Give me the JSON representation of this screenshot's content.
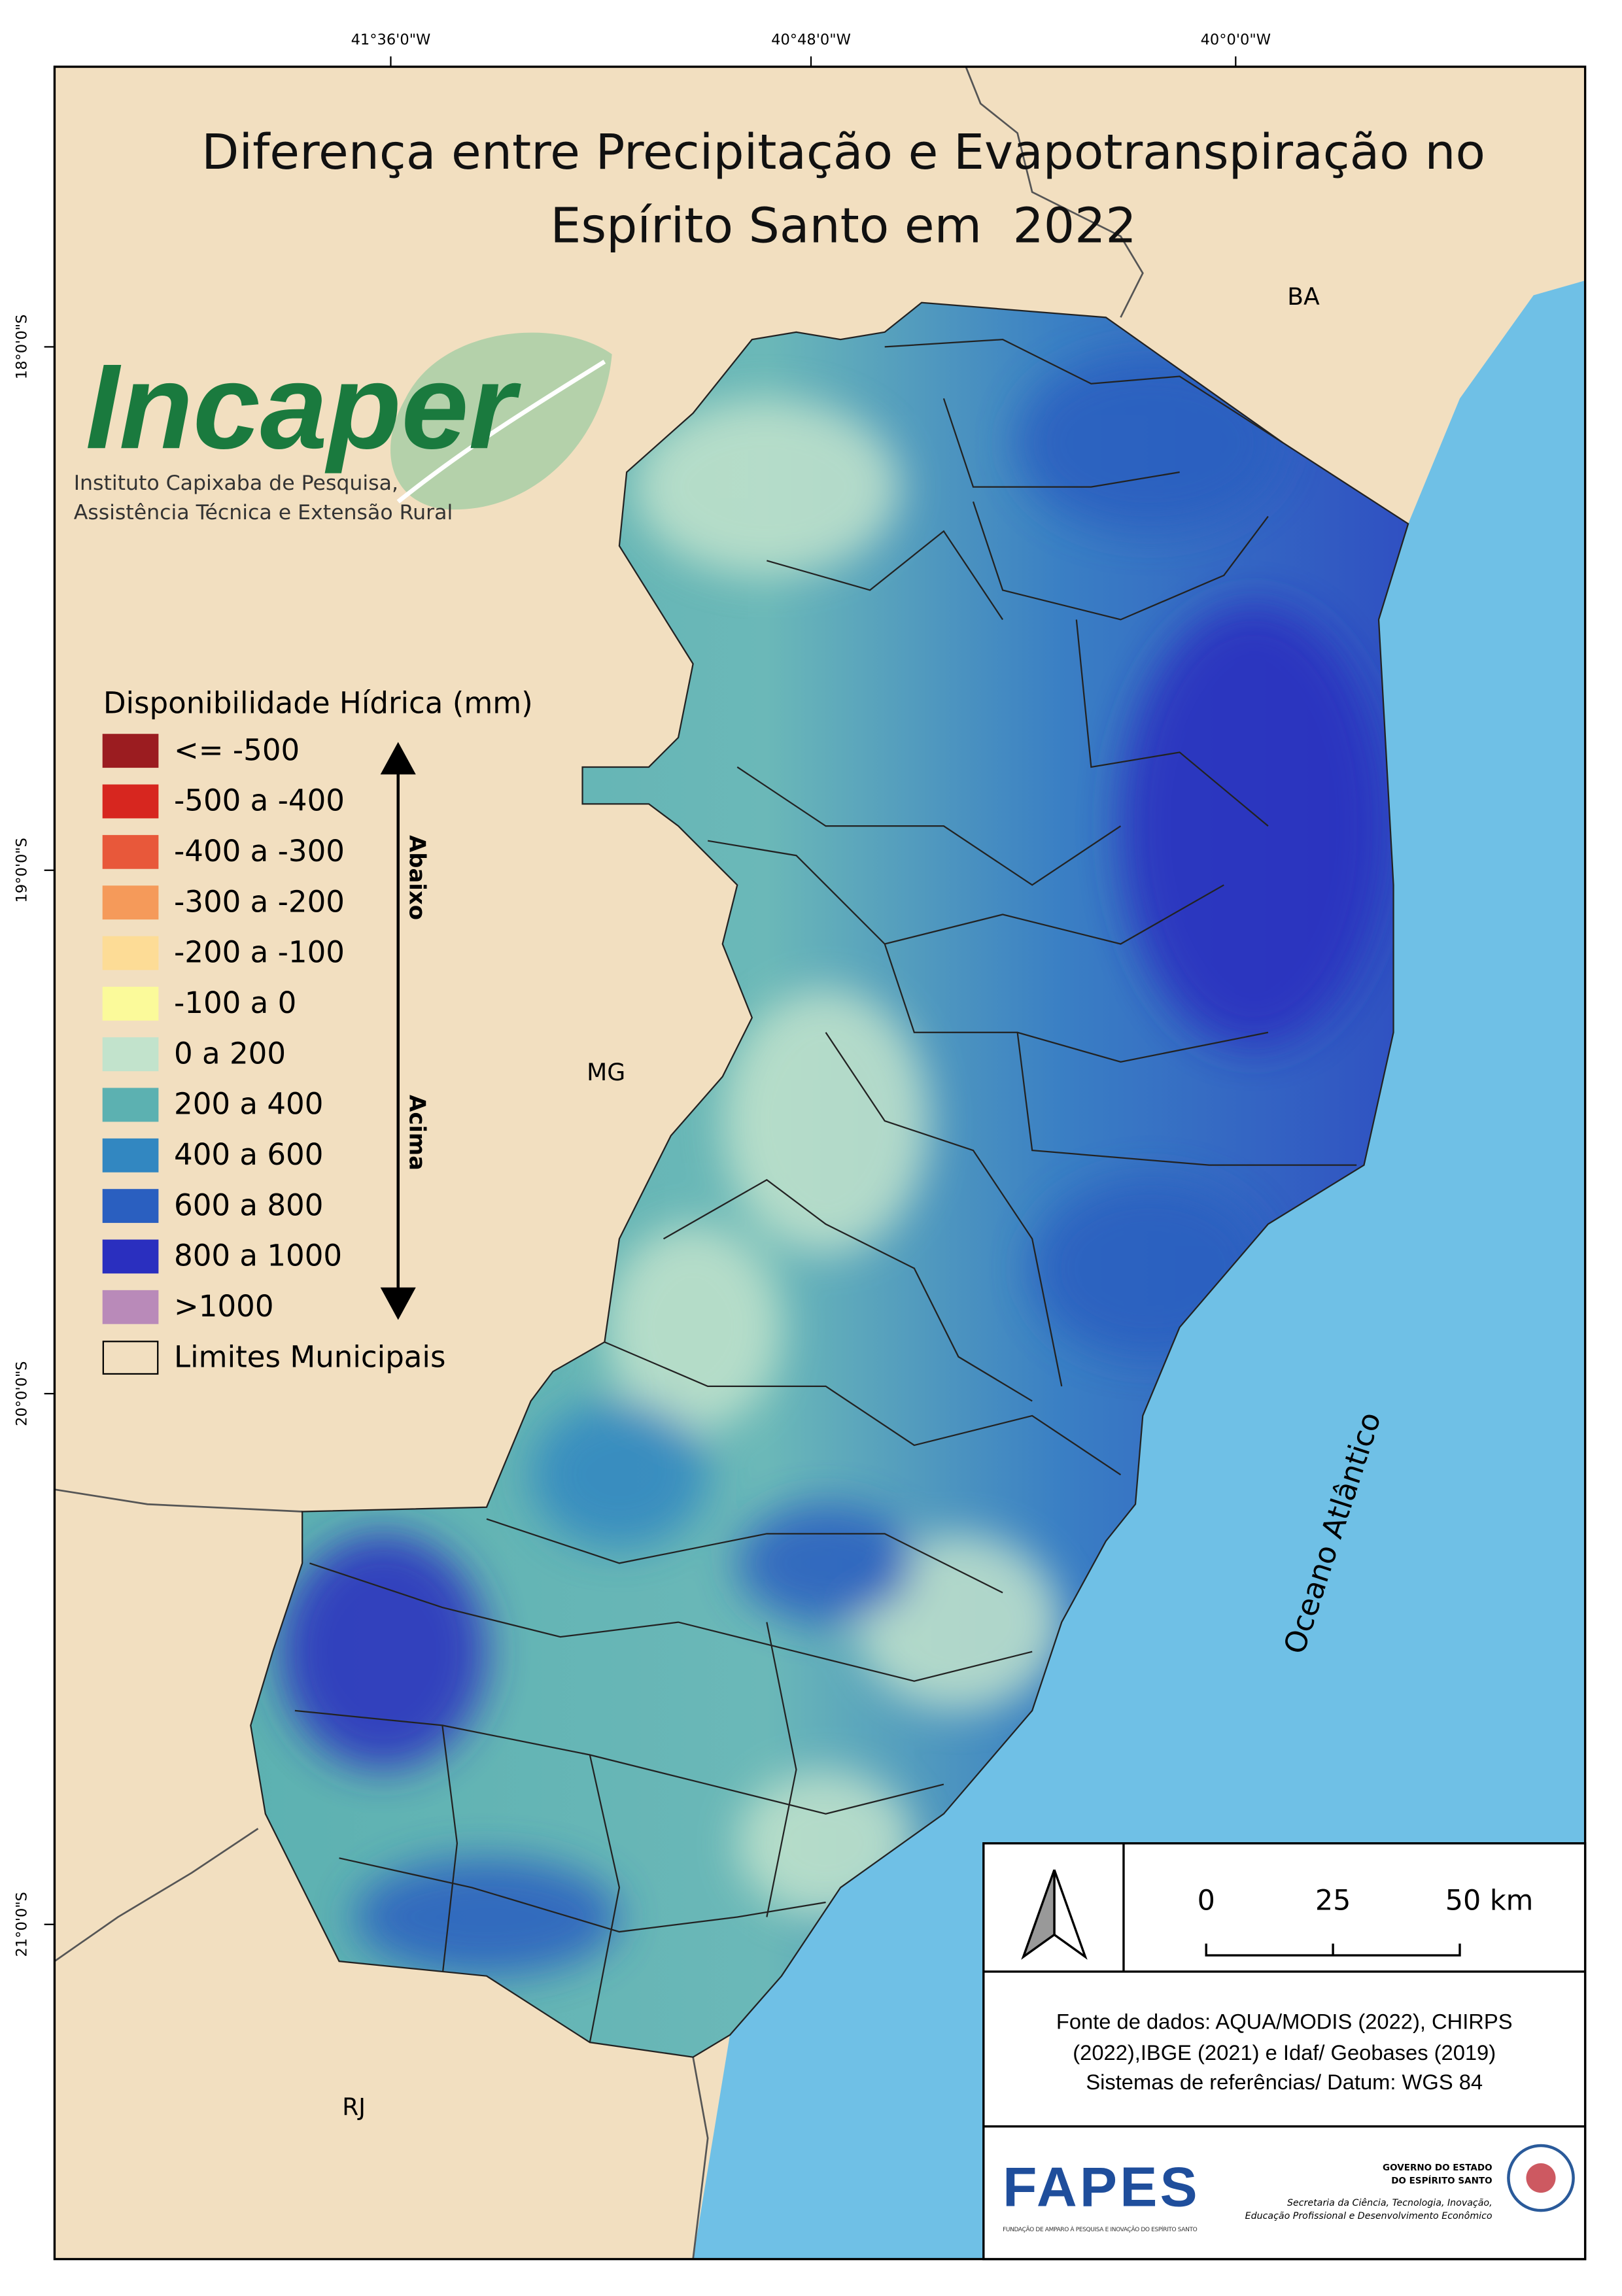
{
  "coordinates": {
    "top": [
      "41°36'0\"W",
      "40°48'0\"W",
      "40°0'0\"W"
    ],
    "left": [
      "18°0'0\"S",
      "19°0'0\"S",
      "20°0'0\"S",
      "21°0'0\"S"
    ]
  },
  "title": [
    "Diferença entre Precipitação e Evapotranspiração no",
    "Espírito Santo em  2022"
  ],
  "logo": {
    "name": "Incaper",
    "subtitle": [
      "Instituto Capixaba de Pesquisa,",
      "Assistência Técnica e Extensão Rural"
    ]
  },
  "legend": {
    "title": "Disponibilidade Hídrica (mm)",
    "items": [
      {
        "label": "<= -500",
        "color": "#9b1c20"
      },
      {
        "label": "-500 a -400",
        "color": "#d7261f"
      },
      {
        "label": "-400 a -300",
        "color": "#e8583a"
      },
      {
        "label": "-300 a -200",
        "color": "#f59a5a"
      },
      {
        "label": "-200 a -100",
        "color": "#fddc96"
      },
      {
        "label": "-100 a 0",
        "color": "#fbfa9a"
      },
      {
        "label": "0 a 200",
        "color": "#c2e3cc"
      },
      {
        "label": "200 a 400",
        "color": "#5cb1b1"
      },
      {
        "label": "400 a 600",
        "color": "#3287c1"
      },
      {
        "label": "600 a 800",
        "color": "#2a5fc0"
      },
      {
        "label": "800 a 1000",
        "color": "#2a2fbf"
      },
      {
        "label": ">1000",
        "color": "#b98ab9"
      },
      {
        "label": "Limites Municipais",
        "color": "#f2dfc0"
      }
    ]
  },
  "arrow_labels": [
    "Abaixo",
    "Acima"
  ],
  "regions": [
    "BA",
    "MG",
    "RJ",
    "Oceano Atlântico"
  ],
  "scale_bar": [
    "0",
    "25",
    "50 km"
  ],
  "source": [
    "Fonte de dados: AQUA/MODIS (2022), CHIRPS",
    "(2022),IBGE (2021) e Idaf/ Geobases (2019)",
    "Sistemas de referências/ Datum: WGS 84"
  ],
  "footer": {
    "fapes": "FAPES",
    "fapes_tagline": "FUNDAÇÃO DE AMPARO À PESQUISA E INOVAÇÃO DO ESPÍRITO SANTO",
    "government": [
      "GOVERNO DO ESTADO",
      "DO ESPÍRITO SANTO",
      "Secretaria da Ciência, Tecnologia, Inovação,",
      "Educação Profissional e Desenvolvimento Econômico"
    ]
  }
}
